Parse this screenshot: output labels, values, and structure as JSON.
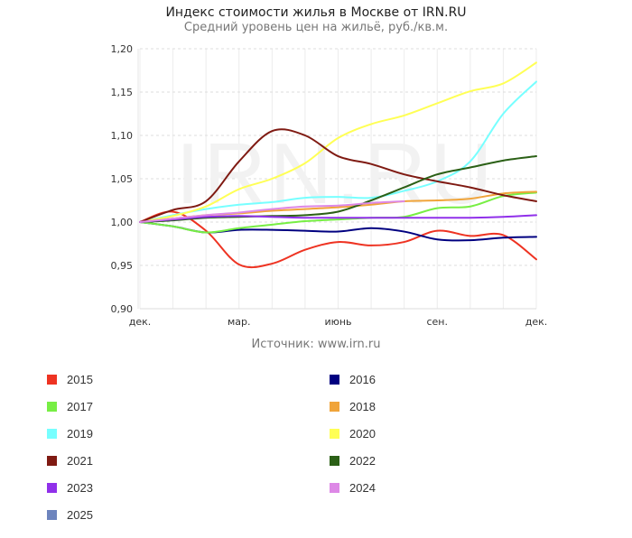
{
  "chart_data": {
    "type": "line",
    "title": "Индекс стоимости жилья в Москве от IRN.RU",
    "subtitle": "Средний уровень цен на жильё, руб./кв.м.",
    "watermark": "IRN.RU",
    "source": "Источник: www.irn.ru",
    "xlabel": "",
    "ylabel": "",
    "x_months": 12,
    "x_tick_labels": [
      {
        "month": 0,
        "label": "дек."
      },
      {
        "month": 3,
        "label": "мар."
      },
      {
        "month": 6,
        "label": "июнь"
      },
      {
        "month": 9,
        "label": "сен."
      },
      {
        "month": 12,
        "label": "дек."
      }
    ],
    "ylim": [
      0.9,
      1.2
    ],
    "y_ticks": [
      {
        "value": 0.9,
        "label": "0,90"
      },
      {
        "value": 0.95,
        "label": "0,95"
      },
      {
        "value": 1.0,
        "label": "1,00"
      },
      {
        "value": 1.05,
        "label": "1,05"
      },
      {
        "value": 1.1,
        "label": "1,10"
      },
      {
        "value": 1.15,
        "label": "1,15"
      },
      {
        "value": 1.2,
        "label": "1,20"
      }
    ],
    "grid": true,
    "legend_position": "bottom",
    "series": [
      {
        "name": "2015",
        "color": "#ee3322",
        "values": [
          1.0,
          1.012,
          0.99,
          0.951,
          0.952,
          0.968,
          0.977,
          0.973,
          0.977,
          0.99,
          0.984,
          0.985,
          0.957
        ]
      },
      {
        "name": "2016",
        "color": "#000080",
        "values": [
          1.0,
          0.995,
          0.988,
          0.991,
          0.991,
          0.99,
          0.989,
          0.993,
          0.989,
          0.98,
          0.979,
          0.982,
          0.983
        ]
      },
      {
        "name": "2017",
        "color": "#77ee44",
        "values": [
          1.0,
          0.995,
          0.988,
          0.993,
          0.997,
          1.001,
          1.003,
          1.005,
          1.006,
          1.016,
          1.018,
          1.03,
          1.034
        ]
      },
      {
        "name": "2018",
        "color": "#f0a43a",
        "values": [
          1.0,
          1.004,
          1.008,
          1.01,
          1.013,
          1.015,
          1.017,
          1.02,
          1.024,
          1.025,
          1.027,
          1.033,
          1.035
        ]
      },
      {
        "name": "2019",
        "color": "#77ffff",
        "values": [
          1.0,
          1.008,
          1.015,
          1.02,
          1.023,
          1.028,
          1.029,
          1.028,
          1.036,
          1.047,
          1.07,
          1.125,
          1.162
        ]
      },
      {
        "name": "2020",
        "color": "#ffff55",
        "values": [
          1.0,
          1.007,
          1.018,
          1.038,
          1.05,
          1.068,
          1.097,
          1.113,
          1.123,
          1.137,
          1.151,
          1.16,
          1.184
        ]
      },
      {
        "name": "2021",
        "color": "#7f1a12",
        "values": [
          1.0,
          1.014,
          1.024,
          1.07,
          1.105,
          1.1,
          1.076,
          1.067,
          1.055,
          1.047,
          1.04,
          1.031,
          1.024
        ]
      },
      {
        "name": "2022",
        "color": "#2b6016",
        "values": [
          1.0,
          1.002,
          1.005,
          1.006,
          1.007,
          1.008,
          1.012,
          1.025,
          1.04,
          1.055,
          1.063,
          1.071,
          1.076
        ]
      },
      {
        "name": "2023",
        "color": "#9030ea",
        "values": [
          1.0,
          1.003,
          1.006,
          1.007,
          1.006,
          1.005,
          1.005,
          1.005,
          1.005,
          1.005,
          1.005,
          1.006,
          1.008
        ]
      },
      {
        "name": "2024",
        "color": "#dd88e6",
        "values": [
          1.0,
          1.004,
          1.008,
          1.011,
          1.015,
          1.018,
          1.019,
          1.022,
          1.024
        ]
      },
      {
        "name": "2025",
        "color": "#6d84bd",
        "values": []
      }
    ]
  }
}
